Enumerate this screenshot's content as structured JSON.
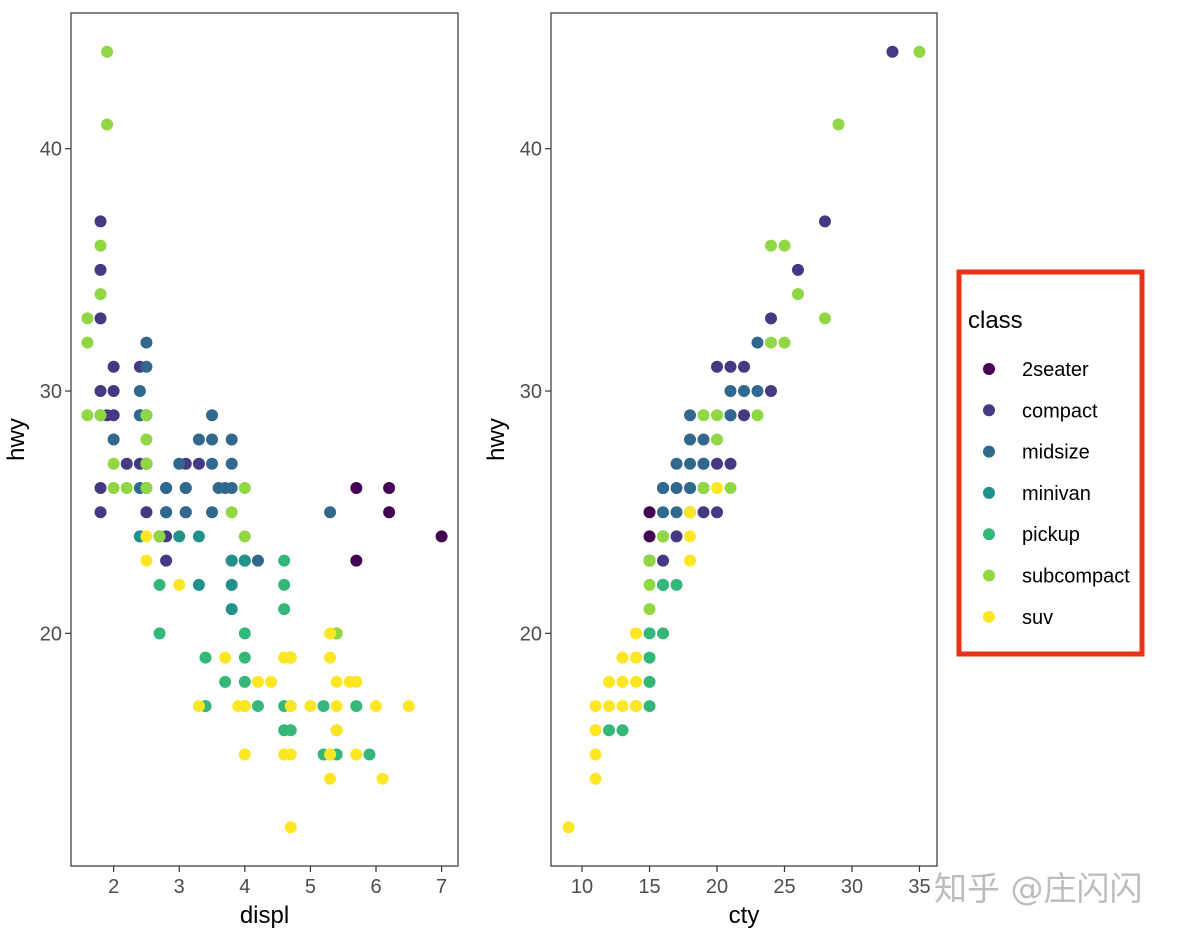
{
  "colors": {
    "2seater": "#440154",
    "compact": "#443983",
    "midsize": "#31688e",
    "minivan": "#21918c",
    "pickup": "#35b779",
    "subcompact": "#90d743",
    "suv": "#fde725",
    "legend_highlight_box": "#e8321a"
  },
  "legend": {
    "title": "class",
    "items": [
      "2seater",
      "compact",
      "midsize",
      "minivan",
      "pickup",
      "subcompact",
      "suv"
    ]
  },
  "watermark": "知乎 @庄闪闪",
  "chart_data": [
    {
      "type": "scatter",
      "xlabel": "displ",
      "ylabel": "hwy",
      "xlim": [
        1.35,
        7.25
      ],
      "ylim": [
        10.4,
        45.6
      ],
      "xticks": [
        2,
        3,
        4,
        5,
        6,
        7
      ],
      "yticks": [
        20,
        30,
        40
      ],
      "series": [
        {
          "name": "2seater",
          "points": [
            [
              5.7,
              26
            ],
            [
              6.2,
              26
            ],
            [
              6.2,
              25
            ],
            [
              7,
              24
            ],
            [
              5.7,
              23
            ]
          ]
        },
        {
          "name": "compact",
          "points": [
            [
              1.8,
              37
            ],
            [
              1.8,
              35
            ],
            [
              1.8,
              33
            ],
            [
              1.8,
              30
            ],
            [
              2,
              31
            ],
            [
              2,
              30
            ],
            [
              1.8,
              29
            ],
            [
              1.9,
              29
            ],
            [
              2,
              29
            ],
            [
              2.4,
              31
            ],
            [
              2.4,
              29
            ],
            [
              2.5,
              27
            ],
            [
              2.4,
              27
            ],
            [
              2.2,
              27
            ],
            [
              3.1,
              27
            ],
            [
              3.3,
              27
            ],
            [
              1.8,
              26
            ],
            [
              2.8,
              26
            ],
            [
              3.1,
              26
            ],
            [
              2.5,
              26
            ],
            [
              1.8,
              25
            ],
            [
              2.5,
              25
            ],
            [
              2.8,
              25
            ],
            [
              3.1,
              25
            ],
            [
              2.8,
              24
            ],
            [
              2.7,
              24
            ],
            [
              2.8,
              23
            ]
          ]
        },
        {
          "name": "midsize",
          "points": [
            [
              2.5,
              32
            ],
            [
              2.5,
              31
            ],
            [
              2.4,
              30
            ],
            [
              2.5,
              29
            ],
            [
              2.4,
              29
            ],
            [
              3.5,
              29
            ],
            [
              2,
              28
            ],
            [
              3.3,
              28
            ],
            [
              3.5,
              28
            ],
            [
              3.8,
              28
            ],
            [
              2.5,
              27
            ],
            [
              3,
              27
            ],
            [
              3.5,
              27
            ],
            [
              3.8,
              27
            ],
            [
              2.4,
              26
            ],
            [
              2.8,
              26
            ],
            [
              3.1,
              26
            ],
            [
              3.6,
              26
            ],
            [
              3.7,
              26
            ],
            [
              3.8,
              26
            ],
            [
              2.8,
              25
            ],
            [
              3.1,
              25
            ],
            [
              3.5,
              25
            ],
            [
              5.3,
              25
            ],
            [
              2.4,
              24
            ],
            [
              4,
              23
            ],
            [
              4.2,
              23
            ],
            [
              3.8,
              23
            ]
          ]
        },
        {
          "name": "minivan",
          "points": [
            [
              2.4,
              24
            ],
            [
              3,
              24
            ],
            [
              3.3,
              24
            ],
            [
              3.8,
              23
            ],
            [
              3.8,
              22
            ],
            [
              3.3,
              22
            ],
            [
              3.8,
              21
            ],
            [
              4,
              23
            ],
            [
              3.4,
              17
            ]
          ]
        },
        {
          "name": "pickup",
          "points": [
            [
              2.7,
              22
            ],
            [
              2.7,
              20
            ],
            [
              3.4,
              19
            ],
            [
              4,
              20
            ],
            [
              4,
              19
            ],
            [
              4,
              18
            ],
            [
              3.7,
              18
            ],
            [
              4,
              17
            ],
            [
              4.2,
              17
            ],
            [
              4.6,
              17
            ],
            [
              4.7,
              17
            ],
            [
              5.2,
              17
            ],
            [
              5.7,
              17
            ],
            [
              4.7,
              16
            ],
            [
              4.6,
              16
            ],
            [
              5.4,
              16
            ],
            [
              5.2,
              15
            ],
            [
              5.3,
              15
            ],
            [
              5.4,
              15
            ],
            [
              5.9,
              15
            ],
            [
              4.6,
              23
            ],
            [
              4.6,
              22
            ],
            [
              4.6,
              21
            ],
            [
              4.7,
              19
            ],
            [
              5.4,
              20
            ],
            [
              3.4,
              17
            ]
          ]
        },
        {
          "name": "subcompact",
          "points": [
            [
              1.9,
              44
            ],
            [
              1.9,
              41
            ],
            [
              1.8,
              36
            ],
            [
              1.8,
              34
            ],
            [
              1.6,
              33
            ],
            [
              1.6,
              32
            ],
            [
              1.6,
              29
            ],
            [
              1.8,
              29
            ],
            [
              2.5,
              29
            ],
            [
              2.5,
              28
            ],
            [
              2,
              27
            ],
            [
              2.5,
              27
            ],
            [
              2,
              26
            ],
            [
              2.2,
              26
            ],
            [
              2.5,
              26
            ],
            [
              4,
              26
            ],
            [
              3.8,
              25
            ],
            [
              4,
              24
            ],
            [
              2.7,
              24
            ],
            [
              5.4,
              20
            ]
          ]
        },
        {
          "name": "suv",
          "points": [
            [
              2.5,
              24
            ],
            [
              2.5,
              23
            ],
            [
              3,
              22
            ],
            [
              3.7,
              19
            ],
            [
              4.6,
              19
            ],
            [
              4.7,
              19
            ],
            [
              5.3,
              20
            ],
            [
              5.3,
              19
            ],
            [
              4.2,
              18
            ],
            [
              4.4,
              18
            ],
            [
              5.4,
              18
            ],
            [
              5.6,
              18
            ],
            [
              5.7,
              18
            ],
            [
              3.3,
              17
            ],
            [
              3.9,
              17
            ],
            [
              4,
              17
            ],
            [
              4.7,
              17
            ],
            [
              5,
              17
            ],
            [
              5.4,
              17
            ],
            [
              6,
              17
            ],
            [
              6.5,
              17
            ],
            [
              5.4,
              16
            ],
            [
              4,
              15
            ],
            [
              4.6,
              15
            ],
            [
              4.7,
              15
            ],
            [
              5.3,
              15
            ],
            [
              5.7,
              15
            ],
            [
              5.3,
              14
            ],
            [
              6.1,
              14
            ],
            [
              4.7,
              12
            ]
          ]
        }
      ]
    },
    {
      "type": "scatter",
      "xlabel": "cty",
      "ylabel": "hwy",
      "xlim": [
        7.7,
        36.3
      ],
      "ylim": [
        10.4,
        45.6
      ],
      "xticks": [
        10,
        15,
        20,
        25,
        30,
        35
      ],
      "yticks": [
        20,
        30,
        40
      ],
      "series": [
        {
          "name": "2seater",
          "points": [
            [
              15,
              25
            ],
            [
              15,
              24
            ],
            [
              15,
              23
            ],
            [
              16,
              26
            ]
          ]
        },
        {
          "name": "compact",
          "points": [
            [
              33,
              44
            ],
            [
              28,
              37
            ],
            [
              26,
              35
            ],
            [
              24,
              33
            ],
            [
              21,
              31
            ],
            [
              20,
              31
            ],
            [
              22,
              31
            ],
            [
              24,
              30
            ],
            [
              22,
              29
            ],
            [
              21,
              29
            ],
            [
              19,
              27
            ],
            [
              20,
              27
            ],
            [
              21,
              27
            ],
            [
              18,
              26
            ],
            [
              19,
              26
            ],
            [
              19,
              25
            ],
            [
              20,
              25
            ],
            [
              16,
              23
            ],
            [
              17,
              24
            ]
          ]
        },
        {
          "name": "midsize",
          "points": [
            [
              23,
              32
            ],
            [
              21,
              30
            ],
            [
              22,
              30
            ],
            [
              23,
              30
            ],
            [
              18,
              29
            ],
            [
              21,
              29
            ],
            [
              18,
              28
            ],
            [
              19,
              28
            ],
            [
              17,
              27
            ],
            [
              18,
              27
            ],
            [
              19,
              27
            ],
            [
              16,
              26
            ],
            [
              17,
              26
            ],
            [
              18,
              26
            ],
            [
              16,
              25
            ],
            [
              17,
              25
            ],
            [
              18,
              25
            ]
          ]
        },
        {
          "name": "minivan",
          "points": [
            [
              16,
              24
            ],
            [
              15,
              23
            ],
            [
              16,
              22
            ]
          ]
        },
        {
          "name": "pickup",
          "points": [
            [
              17,
              22
            ],
            [
              15,
              20
            ],
            [
              16,
              20
            ],
            [
              15,
              19
            ],
            [
              15,
              18
            ],
            [
              14,
              17
            ],
            [
              15,
              17
            ],
            [
              12,
              16
            ],
            [
              13,
              16
            ],
            [
              16,
              22
            ]
          ]
        },
        {
          "name": "subcompact",
          "points": [
            [
              35,
              44
            ],
            [
              29,
              41
            ],
            [
              24,
              36
            ],
            [
              25,
              36
            ],
            [
              26,
              34
            ],
            [
              28,
              33
            ],
            [
              24,
              32
            ],
            [
              25,
              32
            ],
            [
              19,
              29
            ],
            [
              20,
              29
            ],
            [
              23,
              29
            ],
            [
              20,
              28
            ],
            [
              19,
              26
            ],
            [
              21,
              26
            ],
            [
              16,
              24
            ],
            [
              15,
              23
            ],
            [
              15,
              22
            ],
            [
              15,
              21
            ]
          ]
        },
        {
          "name": "suv",
          "points": [
            [
              20,
              26
            ],
            [
              18,
              25
            ],
            [
              18,
              24
            ],
            [
              18,
              23
            ],
            [
              14,
              20
            ],
            [
              13,
              19
            ],
            [
              14,
              19
            ],
            [
              12,
              18
            ],
            [
              13,
              18
            ],
            [
              14,
              18
            ],
            [
              11,
              17
            ],
            [
              12,
              17
            ],
            [
              13,
              17
            ],
            [
              14,
              17
            ],
            [
              11,
              16
            ],
            [
              11,
              15
            ],
            [
              11,
              14
            ],
            [
              9,
              12
            ],
            [
              14,
              19
            ]
          ]
        }
      ]
    }
  ]
}
